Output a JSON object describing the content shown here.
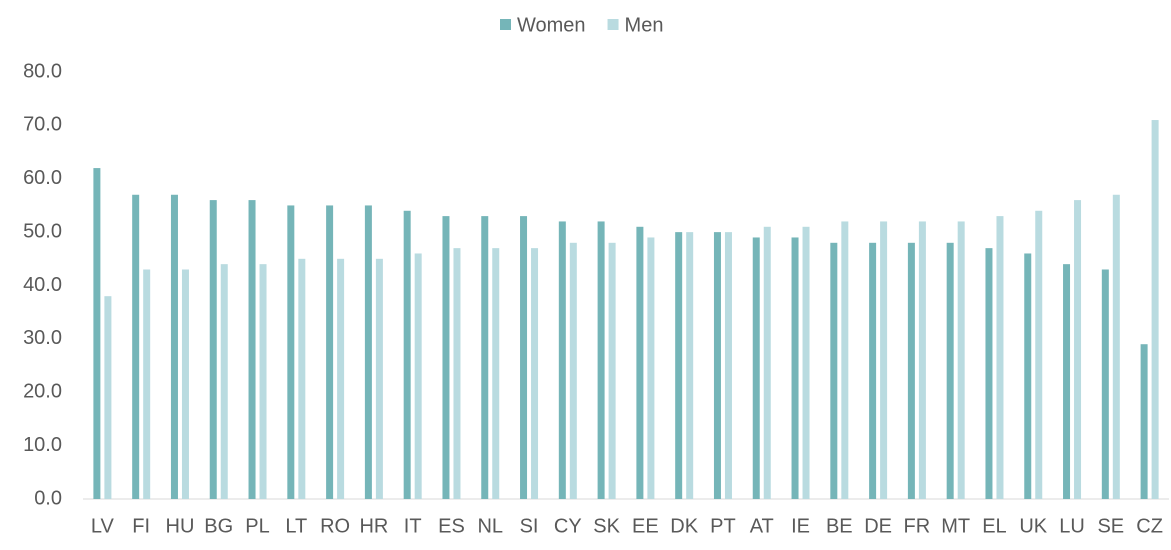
{
  "chart_data": {
    "type": "bar",
    "categories": [
      "LV",
      "FI",
      "HU",
      "BG",
      "PL",
      "LT",
      "RO",
      "HR",
      "IT",
      "ES",
      "NL",
      "SI",
      "CY",
      "SK",
      "EE",
      "DK",
      "PT",
      "AT",
      "IE",
      "BE",
      "DE",
      "FR",
      "MT",
      "EL",
      "UK",
      "LU",
      "SE",
      "CZ"
    ],
    "series": [
      {
        "name": "Women",
        "color": "#75b5b8",
        "values": [
          62,
          57,
          57,
          56,
          56,
          55,
          55,
          55,
          54,
          53,
          53,
          53,
          52,
          52,
          51,
          50,
          50,
          49,
          49,
          48,
          48,
          48,
          48,
          47,
          46,
          44,
          43,
          29
        ]
      },
      {
        "name": "Men",
        "color": "#b9dbe0",
        "values": [
          38,
          43,
          43,
          44,
          44,
          45,
          45,
          45,
          46,
          47,
          47,
          47,
          48,
          48,
          49,
          50,
          50,
          51,
          51,
          52,
          52,
          52,
          52,
          53,
          54,
          56,
          57,
          71
        ]
      }
    ],
    "ylim": [
      0,
      80
    ],
    "yticks": [
      {
        "value": 0,
        "label": "0.0"
      },
      {
        "value": 10,
        "label": "10.0"
      },
      {
        "value": 20,
        "label": "20.0"
      },
      {
        "value": 30,
        "label": "30.0"
      },
      {
        "value": 40,
        "label": "40.0"
      },
      {
        "value": 50,
        "label": "50.0"
      },
      {
        "value": 60,
        "label": "60.0"
      },
      {
        "value": 70,
        "label": "70.0"
      },
      {
        "value": 80,
        "label": "80.0"
      }
    ],
    "legend": "top"
  }
}
